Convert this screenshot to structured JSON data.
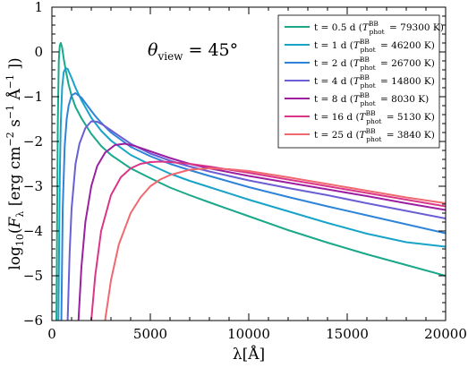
{
  "chart_data": {
    "type": "line",
    "xlabel": "λ[Å]",
    "ylabel": "log10(Fλ [erg cm−2 s−1 Å−1])",
    "xlim": [
      0,
      20000
    ],
    "ylim": [
      -6,
      1
    ],
    "xticks": [
      0,
      5000,
      10000,
      15000,
      20000
    ],
    "yticks": [
      1,
      0,
      -1,
      -2,
      -3,
      -4,
      -5,
      -6
    ],
    "annotation": "θview = 45°",
    "legend_position": "top-right",
    "grid": false,
    "series": [
      {
        "name": "t = 0.5 d (T_phot^BB = 79300 K)",
        "color": "#1aa88a",
        "x": [
          230,
          300,
          350,
          400,
          450,
          520,
          600,
          700,
          850,
          1000,
          1200,
          1500,
          2000,
          2500,
          3000,
          4000,
          5000,
          6000,
          7000,
          8000,
          10000,
          12000,
          14000,
          16000,
          18000,
          20000
        ],
        "y": [
          -6,
          -1.6,
          -0.2,
          0.14,
          0.2,
          0.1,
          -0.15,
          -0.4,
          -0.73,
          -0.98,
          -1.23,
          -1.48,
          -1.83,
          -2.1,
          -2.3,
          -2.6,
          -2.82,
          -3.03,
          -3.2,
          -3.36,
          -3.67,
          -3.98,
          -4.26,
          -4.52,
          -4.76,
          -5.0
        ]
      },
      {
        "name": "t = 1 d (T_phot^BB = 46200 K)",
        "color": "#18a3c9",
        "x": [
          330,
          400,
          450,
          520,
          600,
          700,
          800,
          1000,
          1200,
          1500,
          2000,
          2500,
          3000,
          4000,
          5000,
          6000,
          7000,
          8000,
          10000,
          12000,
          14000,
          16000,
          18000,
          20000
        ],
        "y": [
          -6,
          -2.8,
          -1.6,
          -0.8,
          -0.45,
          -0.36,
          -0.38,
          -0.58,
          -0.8,
          -1.08,
          -1.47,
          -1.76,
          -1.98,
          -2.3,
          -2.52,
          -2.72,
          -2.88,
          -3.02,
          -3.3,
          -3.56,
          -3.82,
          -4.06,
          -4.25,
          -4.35
        ]
      },
      {
        "name": "t = 2 d (T_phot^BB = 26700 K)",
        "color": "#2e84d8",
        "x": [
          480,
          550,
          650,
          750,
          850,
          1000,
          1200,
          1500,
          1800,
          2200,
          2500,
          3000,
          4000,
          5000,
          6000,
          7000,
          8000,
          10000,
          12000,
          14000,
          16000,
          18000,
          20000
        ],
        "y": [
          -6,
          -3.5,
          -2.1,
          -1.5,
          -1.2,
          -0.97,
          -0.92,
          -1.02,
          -1.2,
          -1.43,
          -1.58,
          -1.8,
          -2.12,
          -2.33,
          -2.5,
          -2.64,
          -2.77,
          -3.02,
          -3.24,
          -3.45,
          -3.65,
          -3.85,
          -4.05
        ]
      },
      {
        "name": "t = 4 d (T_phot^BB = 14800 K)",
        "color": "#6a5fd4",
        "x": [
          800,
          900,
          1000,
          1200,
          1400,
          1700,
          2000,
          2300,
          2600,
          3000,
          4000,
          5000,
          6000,
          7000,
          8000,
          10000,
          12000,
          14000,
          16000,
          18000,
          20000
        ],
        "y": [
          -6,
          -4.5,
          -3.5,
          -2.5,
          -2.05,
          -1.7,
          -1.55,
          -1.56,
          -1.63,
          -1.75,
          -2.05,
          -2.27,
          -2.43,
          -2.56,
          -2.67,
          -2.87,
          -3.04,
          -3.2,
          -3.38,
          -3.55,
          -3.72
        ]
      },
      {
        "name": "t = 8 d (T_phot^BB = 8030 K)",
        "color": "#9b1fa0",
        "x": [
          1350,
          1500,
          1700,
          2000,
          2300,
          2700,
          3200,
          3700,
          4200,
          5000,
          6000,
          7000,
          8000,
          10000,
          12000,
          14000,
          16000,
          18000,
          20000
        ],
        "y": [
          -6,
          -4.8,
          -3.8,
          -3.0,
          -2.55,
          -2.25,
          -2.08,
          -2.05,
          -2.1,
          -2.22,
          -2.37,
          -2.5,
          -2.6,
          -2.77,
          -2.92,
          -3.07,
          -3.22,
          -3.38,
          -3.53
        ]
      },
      {
        "name": "t = 16 d (T_phot^BB = 5130 K)",
        "color": "#d9368a",
        "x": [
          2000,
          2200,
          2500,
          3000,
          3500,
          4000,
          4500,
          5000,
          5500,
          6000,
          7000,
          8000,
          10000,
          12000,
          14000,
          16000,
          18000,
          20000
        ],
        "y": [
          -6,
          -5.0,
          -4.0,
          -3.2,
          -2.8,
          -2.6,
          -2.5,
          -2.46,
          -2.45,
          -2.46,
          -2.5,
          -2.56,
          -2.7,
          -2.85,
          -3.0,
          -3.15,
          -3.3,
          -3.45
        ]
      },
      {
        "name": "t = 25 d (T_phot^BB = 3840 K)",
        "color": "#f06870",
        "x": [
          2700,
          3000,
          3400,
          4000,
          4500,
          5000,
          5500,
          6000,
          7000,
          8000,
          9000,
          10000,
          12000,
          14000,
          16000,
          18000,
          20000
        ],
        "y": [
          -6,
          -5.1,
          -4.3,
          -3.6,
          -3.25,
          -3.0,
          -2.85,
          -2.75,
          -2.63,
          -2.6,
          -2.62,
          -2.66,
          -2.8,
          -2.95,
          -3.1,
          -3.25,
          -3.38
        ]
      }
    ],
    "legend": [
      {
        "prefix": "t = 0.5 d (",
        "T_sym": "T",
        "T_sup": "BB",
        "T_sub": "phot",
        "suffix": " = 79300 K)",
        "color": "#1aa88a"
      },
      {
        "prefix": "t = 1 d (",
        "T_sym": "T",
        "T_sup": "BB",
        "T_sub": "phot",
        "suffix": " = 46200 K)",
        "color": "#18a3c9"
      },
      {
        "prefix": "t = 2 d (",
        "T_sym": "T",
        "T_sup": "BB",
        "T_sub": "phot",
        "suffix": " = 26700 K)",
        "color": "#2e84d8"
      },
      {
        "prefix": "t = 4 d (",
        "T_sym": "T",
        "T_sup": "BB",
        "T_sub": "phot",
        "suffix": " = 14800 K)",
        "color": "#6a5fd4"
      },
      {
        "prefix": "t = 8 d (",
        "T_sym": "T",
        "T_sup": "BB",
        "T_sub": "phot",
        "suffix": " = 8030 K)",
        "color": "#9b1fa0"
      },
      {
        "prefix": "t = 16 d (",
        "T_sym": "T",
        "T_sup": "BB",
        "T_sub": "phot",
        "suffix": " = 5130 K)",
        "color": "#d9368a"
      },
      {
        "prefix": "t = 25 d (",
        "T_sym": "T",
        "T_sup": "BB",
        "T_sub": "phot",
        "suffix": " = 3840 K)",
        "color": "#f06870"
      }
    ]
  }
}
